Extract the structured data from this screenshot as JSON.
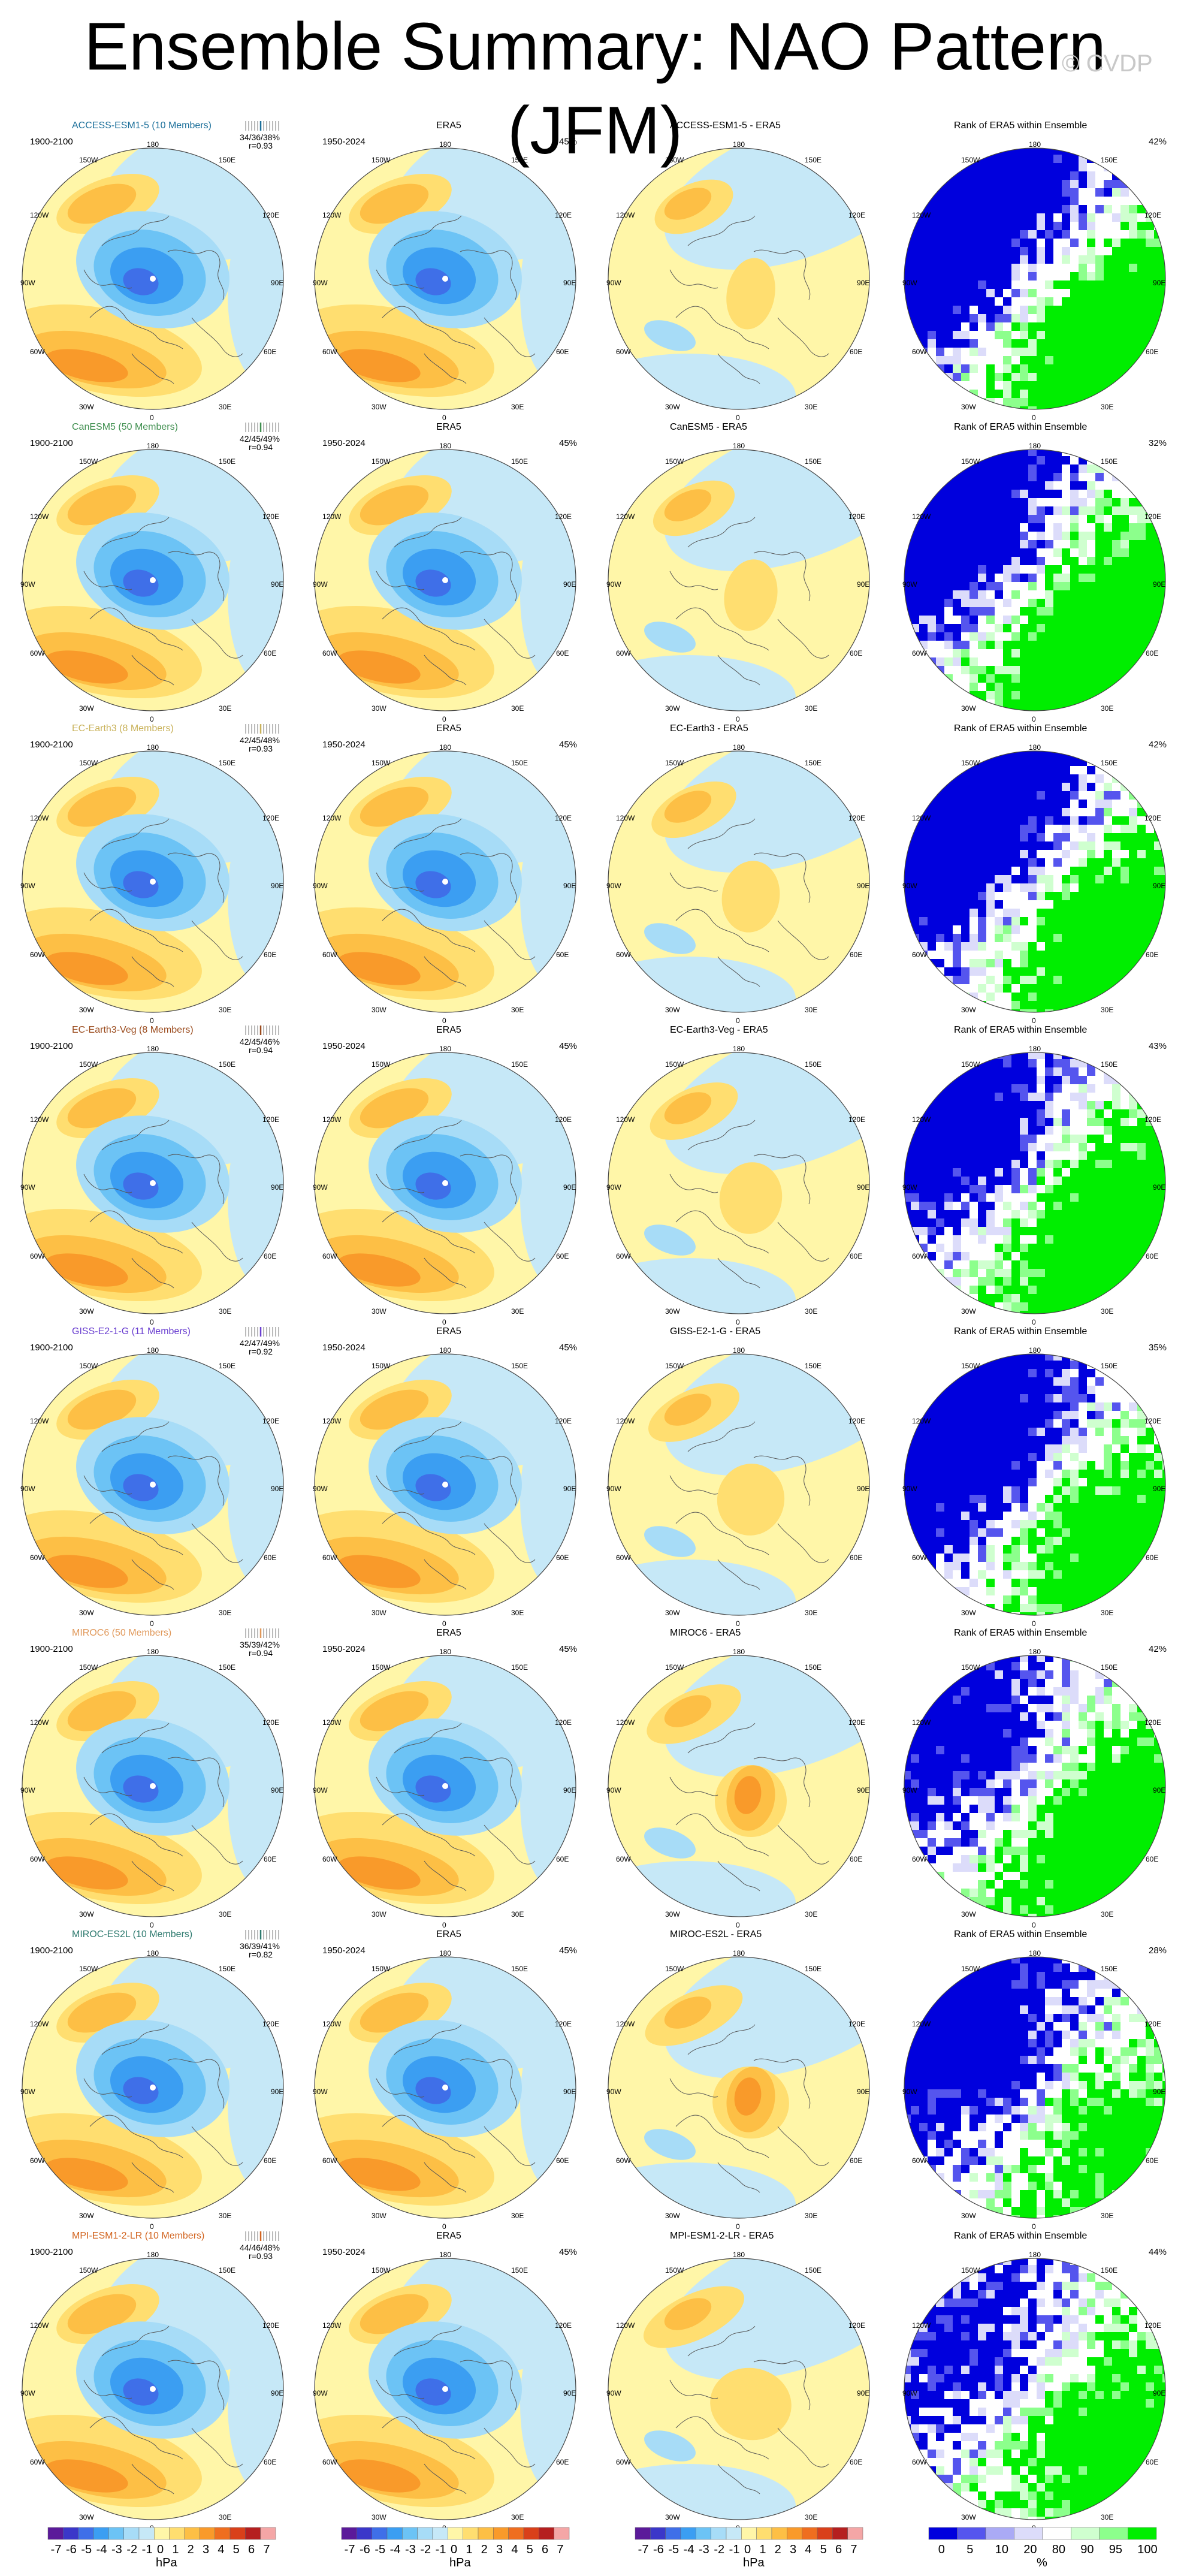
{
  "title": "Ensemble Summary: NAO Pattern (JFM)",
  "watermark": "© CVDP",
  "column_titles": {
    "era5": "ERA5",
    "rank": "Rank of ERA5 within Ensemble"
  },
  "periods": {
    "model": "1900-2100",
    "obs": "1950-2024"
  },
  "obs_pct": "45%",
  "lon_labels": {
    "top": "180",
    "bottom": "0",
    "ul": "150W",
    "ur": "150E",
    "l1": "120W",
    "r1": "120E",
    "l2": "90W",
    "r2": "90E",
    "l3": "60W",
    "r3": "60E",
    "bl": "30W",
    "br": "30E"
  },
  "colors": {
    "model_diverging": [
      "#5b1a9a",
      "#3b37c9",
      "#3f6fe8",
      "#3b9ef2",
      "#6cc3f5",
      "#a7dcf7",
      "#c6e8f7",
      "#fff6a8",
      "#ffde70",
      "#fdbf45",
      "#f99a2a",
      "#ef6e1f",
      "#d9401a",
      "#b51f1f",
      "#f4a6a6"
    ],
    "rank": [
      "#0000dd",
      "#5555ee",
      "#aaaaf5",
      "#dcdcfa",
      "#ffffff",
      "#cfffcf",
      "#8cff8c",
      "#00ee00"
    ]
  },
  "models": [
    {
      "name": "ACCESS-ESM1-5 (10 Members)",
      "short": "ACCESS-ESM1-5",
      "color": "#1b6f9a",
      "stats1": "34/36/38%",
      "stats2": "r=0.93",
      "rank_pct": "42%",
      "diff_title": "ACCESS-ESM1-5 - ERA5"
    },
    {
      "name": "CanESM5 (50 Members)",
      "short": "CanESM5",
      "color": "#3f8f4f",
      "stats1": "42/45/49%",
      "stats2": "r=0.94",
      "rank_pct": "32%",
      "diff_title": "CanESM5 - ERA5"
    },
    {
      "name": "EC-Earth3 (8 Members)",
      "short": "EC-Earth3",
      "color": "#c9b25a",
      "stats1": "42/45/48%",
      "stats2": "r=0.93",
      "rank_pct": "42%",
      "diff_title": "EC-Earth3 - ERA5"
    },
    {
      "name": "EC-Earth3-Veg (8 Members)",
      "short": "EC-Earth3-Veg",
      "color": "#9a4a1c",
      "stats1": "42/45/46%",
      "stats2": "r=0.94",
      "rank_pct": "43%",
      "diff_title": "EC-Earth3-Veg - ERA5"
    },
    {
      "name": "GISS-E2-1-G (11 Members)",
      "short": "GISS-E2-1-G",
      "color": "#6a3fd0",
      "stats1": "42/47/49%",
      "stats2": "r=0.92",
      "rank_pct": "35%",
      "diff_title": "GISS-E2-1-G - ERA5"
    },
    {
      "name": "MIROC6 (50 Members)",
      "short": "MIROC6",
      "color": "#e0985a",
      "stats1": "35/39/42%",
      "stats2": "r=0.94",
      "rank_pct": "42%",
      "diff_title": "MIROC6 - ERA5"
    },
    {
      "name": "MIROC-ES2L (10 Members)",
      "short": "MIROC-ES2L",
      "color": "#2e7a6f",
      "stats1": "36/39/41%",
      "stats2": "r=0.82",
      "rank_pct": "28%",
      "diff_title": "MIROC-ES2L - ERA5"
    },
    {
      "name": "MPI-ESM1-2-LR (10 Members)",
      "short": "MPI-ESM1-2-LR",
      "color": "#d2641f",
      "stats1": "44/46/48%",
      "stats2": "r=0.93",
      "rank_pct": "44%",
      "diff_title": "MPI-ESM1-2-LR - ERA5"
    }
  ],
  "colorbar_hpa": {
    "labels": [
      "-7",
      "-6",
      "-5",
      "-4",
      "-3",
      "-2",
      "-1",
      "0",
      "1",
      "2",
      "3",
      "4",
      "5",
      "6",
      "7"
    ],
    "unit": "hPa"
  },
  "colorbar_rank": {
    "labels": [
      "0",
      "5",
      "10",
      "20",
      "80",
      "90",
      "95",
      "100"
    ],
    "unit": "%"
  }
}
